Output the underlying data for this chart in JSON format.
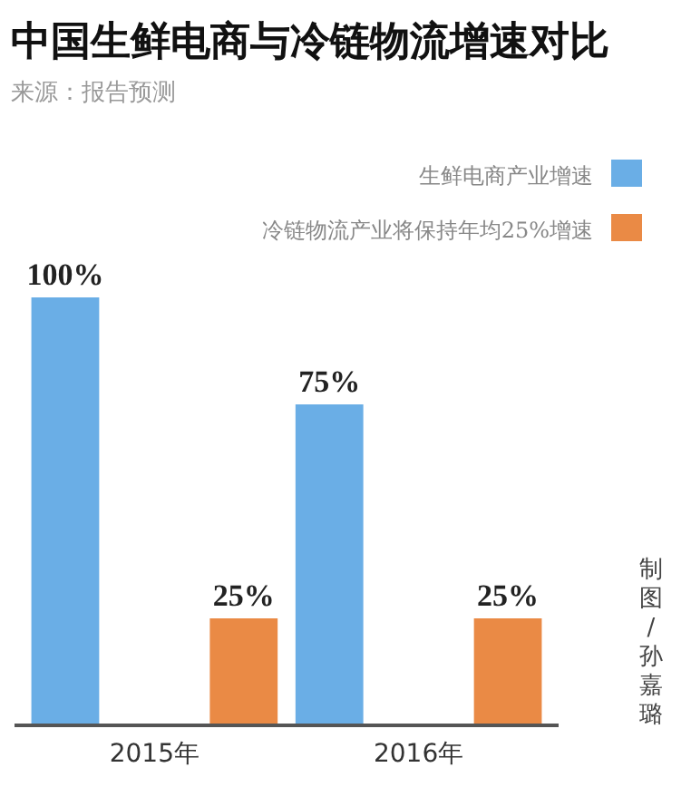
{
  "chart_data": {
    "type": "bar",
    "title": "中国生鲜电商与冷链物流增速对比",
    "subtitle": "来源：报告预测",
    "categories": [
      "2015年",
      "2016年"
    ],
    "series": [
      {
        "name": "生鲜电商产业增速",
        "color": "#6aaee6",
        "values": [
          100,
          75
        ],
        "value_labels": [
          "100%",
          "75%"
        ]
      },
      {
        "name": "冷链物流产业将保持年均25%增速",
        "color": "#ea8a45",
        "values": [
          25,
          25
        ],
        "value_labels": [
          "25%",
          "25%"
        ]
      }
    ],
    "legend": "top right",
    "annotations": [
      "制图/孙嘉璐"
    ]
  }
}
